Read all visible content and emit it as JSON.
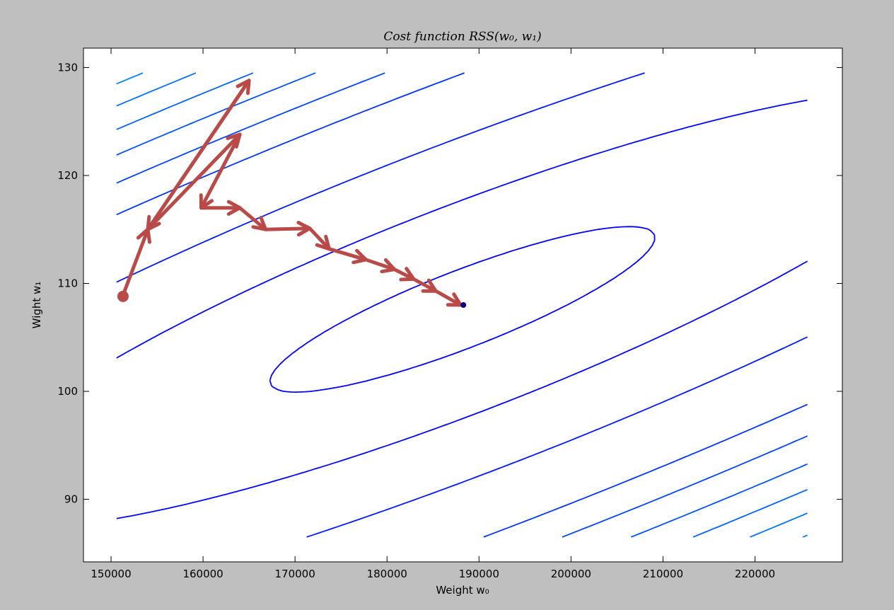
{
  "chart_data": {
    "type": "contour",
    "title": "Cost function RSS(w₀, w₁)",
    "xlabel": "Weight w₀",
    "ylabel": "Wight w₁",
    "xlim": [
      147000,
      229500
    ],
    "ylim": [
      84.2,
      131.8
    ],
    "xticks": [
      150000,
      160000,
      170000,
      180000,
      190000,
      200000,
      210000,
      220000
    ],
    "yticks": [
      90,
      100,
      110,
      120,
      130
    ],
    "xtick_labels": [
      "150000",
      "160000",
      "170000",
      "180000",
      "190000",
      "200000",
      "210000",
      "220000"
    ],
    "ytick_labels": [
      "90",
      "100",
      "110",
      "120",
      "130"
    ],
    "grid": false,
    "colormap": "jet",
    "contour": {
      "domain_w0": [
        150600,
        225700
      ],
      "domain_w1": [
        86.5,
        129.5
      ],
      "center": [
        188200,
        107.6
      ],
      "cov_w0": 0.22,
      "cov_w1": 0.22,
      "scale_w0": 30000,
      "scale_w1": 11,
      "inner_levels": [
        0.2,
        1.4,
        3.5
      ],
      "outer_level_start": 6.5,
      "outer_level_step": 1.77,
      "outer_level_count": 55
    },
    "gradient_path": {
      "color": "#b94a48",
      "points": [
        [
          151300,
          108.9
        ],
        [
          154000,
          115.0
        ],
        [
          165000,
          128.8
        ],
        [
          154000,
          115.0
        ],
        [
          164000,
          123.8
        ],
        [
          159800,
          117.0
        ],
        [
          164000,
          117.0
        ],
        [
          166800,
          115.0
        ],
        [
          171600,
          115.1
        ],
        [
          173700,
          113.2
        ],
        [
          177700,
          112.2
        ],
        [
          180800,
          111.3
        ],
        [
          182900,
          110.4
        ],
        [
          185300,
          109.3
        ],
        [
          188000,
          108.0
        ]
      ]
    },
    "start_point": {
      "w0": 151300,
      "w1": 108.8,
      "color": "#b94a48"
    },
    "end_point": {
      "w0": 188300,
      "w1": 108.0,
      "color": "#00008b"
    }
  }
}
